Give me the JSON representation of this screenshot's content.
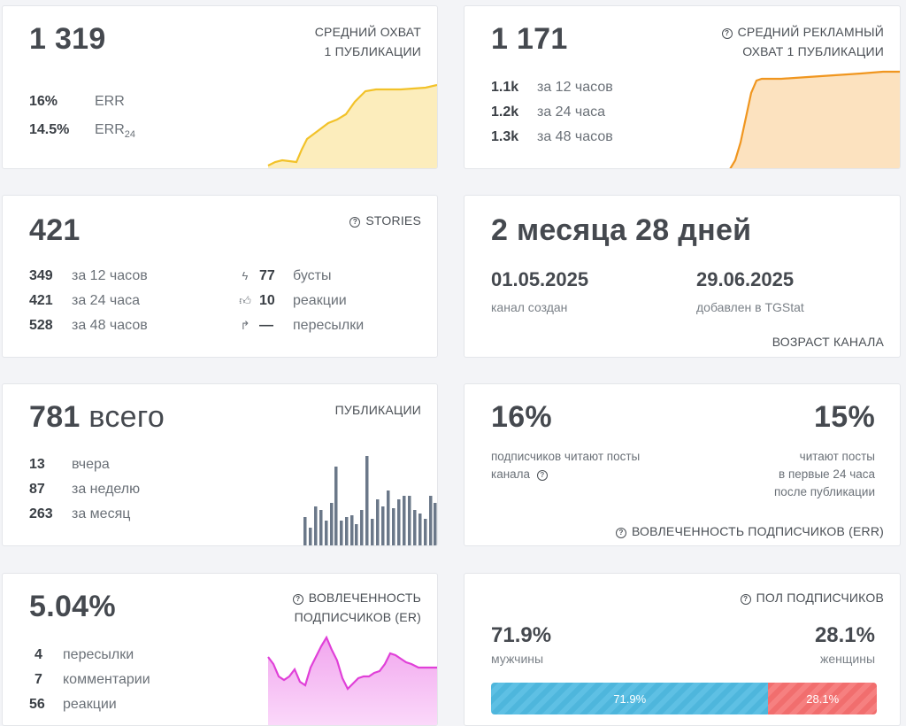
{
  "reach": {
    "value": "1 319",
    "title_line1": "СРЕДНИЙ ОХВАТ",
    "title_line2": "1 ПУБЛИКАЦИИ",
    "rows": [
      {
        "num": "16%",
        "label": "ERR",
        "sub": ""
      },
      {
        "num": "14.5%",
        "label": "ERR",
        "sub": "24"
      }
    ],
    "color": "#f2c229"
  },
  "ad_reach": {
    "value": "1 171",
    "title_line1": "СРЕДНИЙ РЕКЛАМНЫЙ",
    "title_line2": "ОХВАТ 1 ПУБЛИКАЦИИ",
    "rows": [
      {
        "num": "1.1k",
        "label": "за 12 часов"
      },
      {
        "num": "1.2k",
        "label": "за 24 часа"
      },
      {
        "num": "1.3k",
        "label": "за 48 часов"
      }
    ],
    "color": "#f0961f"
  },
  "stories": {
    "value": "421",
    "title": "STORIES",
    "left_rows": [
      {
        "num": "349",
        "label": "за 12 часов"
      },
      {
        "num": "421",
        "label": "за 24 часа"
      },
      {
        "num": "528",
        "label": "за 48 часов"
      }
    ],
    "right_rows": [
      {
        "icon": "lightning-icon",
        "glyph": "ϟ",
        "num": "77",
        "label": "бусты"
      },
      {
        "icon": "thumbs-up-icon",
        "glyph": "👍",
        "num": "10",
        "label": "реакции"
      },
      {
        "icon": "forward-arrow-icon",
        "glyph": "↱",
        "num": "—",
        "label": "пересылки"
      }
    ]
  },
  "age": {
    "value": "2 месяца 28 дней",
    "created_date": "01.05.2025",
    "created_label": "канал создан",
    "added_date": "29.06.2025",
    "added_label": "добавлен в TGStat",
    "title": "ВОЗРАСТ КАНАЛА"
  },
  "publications": {
    "value_num": "781",
    "value_suffix": "всего",
    "title": "ПУБЛИКАЦИИ",
    "rows": [
      {
        "num": "13",
        "label": "вчера"
      },
      {
        "num": "87",
        "label": "за неделю"
      },
      {
        "num": "263",
        "label": "за месяц"
      }
    ],
    "color": "#6b7889"
  },
  "err": {
    "left_value": "16%",
    "left_text_line1": "подписчиков читают посты",
    "left_text_line2": "канала",
    "right_value": "15%",
    "right_text_line1": "читают посты",
    "right_text_line2": "в первые 24 часа",
    "right_text_line3": "после публикации",
    "title": "ВОВЛЕЧЕННОСТЬ ПОДПИСЧИКОВ (ERR)"
  },
  "er": {
    "value": "5.04%",
    "title_line1": "ВОВЛЕЧЕННОСТЬ",
    "title_line2": "ПОДПИСЧИКОВ (ER)",
    "rows": [
      {
        "num": "4",
        "label": "пересылки"
      },
      {
        "num": "7",
        "label": "комментарии"
      },
      {
        "num": "56",
        "label": "реакции"
      }
    ],
    "color": "#e040d8"
  },
  "gender": {
    "title": "ПОЛ ПОДПИСЧИКОВ",
    "male_value": "71.9%",
    "male_label": "мужчины",
    "female_value": "28.1%",
    "female_label": "женщины",
    "male_fraction": 0.719,
    "female_fraction": 0.281,
    "male_bar_label": "71.9%",
    "female_bar_label": "28.1%"
  }
}
